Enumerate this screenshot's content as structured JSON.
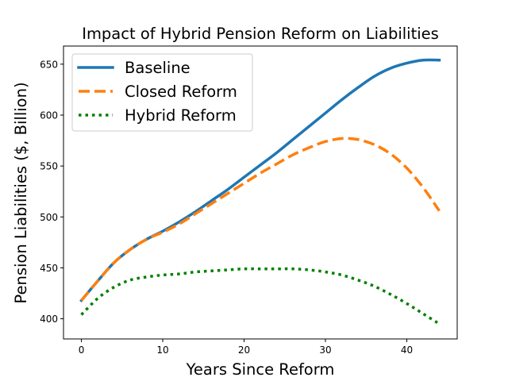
{
  "chart_data": {
    "type": "line",
    "title": "Impact of Hybrid Pension Reform on Liabilities",
    "xlabel": "Years Since Reform",
    "ylabel": "Pension Liabilities ($, Billion)",
    "xlim": [
      -2.2,
      46.2
    ],
    "ylim": [
      380.2,
      667.8
    ],
    "xticks": [
      0,
      10,
      20,
      30,
      40
    ],
    "yticks": [
      400,
      450,
      500,
      550,
      600,
      650
    ],
    "grid": false,
    "legend_position": "top-left",
    "x": [
      0,
      2,
      4,
      6,
      8,
      10,
      12,
      14,
      16,
      18,
      20,
      22,
      24,
      26,
      28,
      30,
      32,
      34,
      36,
      38,
      40,
      42,
      44
    ],
    "series": [
      {
        "name": "Baseline",
        "color": "#1f77b4",
        "dash": "solid",
        "values": [
          418,
          437,
          455,
          468,
          478,
          486,
          495,
          505,
          516,
          527,
          539,
          551,
          563,
          576,
          589,
          602,
          615,
          627,
          638,
          646,
          651,
          654,
          654
        ]
      },
      {
        "name": "Closed Reform",
        "color": "#ff7f0e",
        "dash": "dashed",
        "values": [
          418,
          437,
          455,
          468,
          478,
          485,
          493,
          503,
          513,
          523,
          533,
          543,
          552,
          561,
          568,
          574,
          577,
          576,
          571,
          562,
          548,
          529,
          506
        ]
      },
      {
        "name": "Hybrid Reform",
        "color": "#008000",
        "dash": "dotted",
        "values": [
          404,
          420,
          431,
          438,
          441,
          443,
          444,
          446,
          447,
          448,
          449,
          449,
          449,
          449,
          448,
          446,
          443,
          438,
          432,
          424,
          415,
          405,
          395
        ]
      }
    ]
  }
}
